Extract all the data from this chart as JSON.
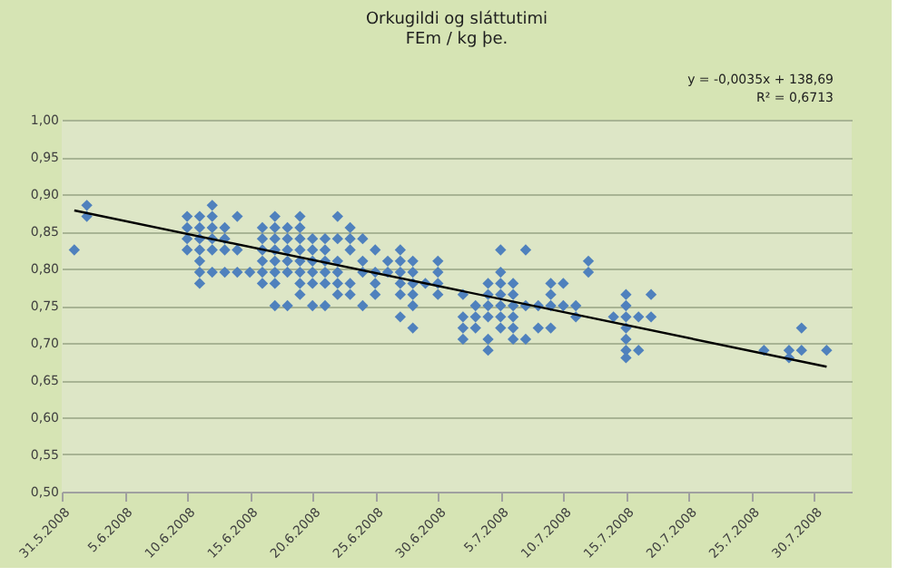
{
  "chart_data": {
    "type": "scatter",
    "title": "Orkugildi og sláttutimi",
    "subtitle": "FEm / kg þe.",
    "annotations": [
      "y = -0,0035x + 138,69",
      "R² = 0,6713"
    ],
    "xlim": [
      "2008-05-31",
      "2008-08-02"
    ],
    "xticks": [
      {
        "value": "2008-05-31",
        "label": "31.5.2008"
      },
      {
        "value": "2008-06-05",
        "label": "5.6.2008"
      },
      {
        "value": "2008-06-10",
        "label": "10.6.2008"
      },
      {
        "value": "2008-06-15",
        "label": "15.6.2008"
      },
      {
        "value": "2008-06-20",
        "label": "20.6.2008"
      },
      {
        "value": "2008-06-25",
        "label": "25.6.2008"
      },
      {
        "value": "2008-06-30",
        "label": "30.6.2008"
      },
      {
        "value": "2008-07-05",
        "label": "5.7.2008"
      },
      {
        "value": "2008-07-10",
        "label": "10.7.2008"
      },
      {
        "value": "2008-07-15",
        "label": "15.7.2008"
      },
      {
        "value": "2008-07-20",
        "label": "20.7.2008"
      },
      {
        "value": "2008-07-25",
        "label": "25.7.2008"
      },
      {
        "value": "2008-07-30",
        "label": "30.7.2008"
      }
    ],
    "ylim": [
      0.5,
      1.0
    ],
    "yticks": [
      {
        "value": 0.5,
        "label": "0,50"
      },
      {
        "value": 0.55,
        "label": "0,55"
      },
      {
        "value": 0.6,
        "label": "0,60"
      },
      {
        "value": 0.65,
        "label": "0,65"
      },
      {
        "value": 0.7,
        "label": "0,70"
      },
      {
        "value": 0.75,
        "label": "0,75"
      },
      {
        "value": 0.8,
        "label": "0,80"
      },
      {
        "value": 0.85,
        "label": "0,85"
      },
      {
        "value": 0.9,
        "label": "0,90"
      },
      {
        "value": 0.95,
        "label": "0,95"
      },
      {
        "value": 1.0,
        "label": "1,00"
      }
    ],
    "grid": "y",
    "marker": "diamond",
    "series": [
      {
        "type": "scatter",
        "color": "#4f81bd",
        "x": [
          "2008-06-01",
          "2008-06-02",
          "2008-06-02",
          "2008-06-10",
          "2008-06-10",
          "2008-06-10",
          "2008-06-10",
          "2008-06-11",
          "2008-06-11",
          "2008-06-11",
          "2008-06-11",
          "2008-06-11",
          "2008-06-11",
          "2008-06-11",
          "2008-06-12",
          "2008-06-12",
          "2008-06-12",
          "2008-06-12",
          "2008-06-12",
          "2008-06-12",
          "2008-06-13",
          "2008-06-13",
          "2008-06-13",
          "2008-06-13",
          "2008-06-14",
          "2008-06-14",
          "2008-06-14",
          "2008-06-15",
          "2008-06-16",
          "2008-06-16",
          "2008-06-16",
          "2008-06-16",
          "2008-06-16",
          "2008-06-16",
          "2008-06-17",
          "2008-06-17",
          "2008-06-17",
          "2008-06-17",
          "2008-06-17",
          "2008-06-17",
          "2008-06-17",
          "2008-06-17",
          "2008-06-18",
          "2008-06-18",
          "2008-06-18",
          "2008-06-18",
          "2008-06-18",
          "2008-06-18",
          "2008-06-19",
          "2008-06-19",
          "2008-06-19",
          "2008-06-19",
          "2008-06-19",
          "2008-06-19",
          "2008-06-19",
          "2008-06-19",
          "2008-06-20",
          "2008-06-20",
          "2008-06-20",
          "2008-06-20",
          "2008-06-20",
          "2008-06-20",
          "2008-06-21",
          "2008-06-21",
          "2008-06-21",
          "2008-06-21",
          "2008-06-21",
          "2008-06-21",
          "2008-06-22",
          "2008-06-22",
          "2008-06-22",
          "2008-06-22",
          "2008-06-22",
          "2008-06-22",
          "2008-06-23",
          "2008-06-23",
          "2008-06-23",
          "2008-06-23",
          "2008-06-23",
          "2008-06-24",
          "2008-06-24",
          "2008-06-24",
          "2008-06-24",
          "2008-06-25",
          "2008-06-25",
          "2008-06-25",
          "2008-06-25",
          "2008-06-26",
          "2008-06-26",
          "2008-06-27",
          "2008-06-27",
          "2008-06-27",
          "2008-06-27",
          "2008-06-27",
          "2008-06-27",
          "2008-06-28",
          "2008-06-28",
          "2008-06-28",
          "2008-06-28",
          "2008-06-28",
          "2008-06-28",
          "2008-06-29",
          "2008-06-30",
          "2008-06-30",
          "2008-06-30",
          "2008-06-30",
          "2008-07-02",
          "2008-07-02",
          "2008-07-02",
          "2008-07-02",
          "2008-07-03",
          "2008-07-03",
          "2008-07-03",
          "2008-07-04",
          "2008-07-04",
          "2008-07-04",
          "2008-07-04",
          "2008-07-04",
          "2008-07-04",
          "2008-07-05",
          "2008-07-05",
          "2008-07-05",
          "2008-07-05",
          "2008-07-05",
          "2008-07-05",
          "2008-07-05",
          "2008-07-06",
          "2008-07-06",
          "2008-07-06",
          "2008-07-06",
          "2008-07-06",
          "2008-07-06",
          "2008-07-07",
          "2008-07-07",
          "2008-07-07",
          "2008-07-08",
          "2008-07-08",
          "2008-07-09",
          "2008-07-09",
          "2008-07-09",
          "2008-07-09",
          "2008-07-10",
          "2008-07-10",
          "2008-07-11",
          "2008-07-11",
          "2008-07-12",
          "2008-07-12",
          "2008-07-14",
          "2008-07-15",
          "2008-07-15",
          "2008-07-15",
          "2008-07-15",
          "2008-07-15",
          "2008-07-15",
          "2008-07-15",
          "2008-07-16",
          "2008-07-16",
          "2008-07-17",
          "2008-07-17",
          "2008-07-26",
          "2008-07-28",
          "2008-07-28",
          "2008-07-29",
          "2008-07-29",
          "2008-07-31"
        ],
        "values": [
          0.825,
          0.885,
          0.87,
          0.87,
          0.855,
          0.84,
          0.825,
          0.87,
          0.855,
          0.84,
          0.825,
          0.81,
          0.795,
          0.78,
          0.885,
          0.87,
          0.855,
          0.84,
          0.825,
          0.795,
          0.855,
          0.84,
          0.825,
          0.795,
          0.87,
          0.825,
          0.795,
          0.795,
          0.855,
          0.84,
          0.825,
          0.81,
          0.795,
          0.78,
          0.87,
          0.855,
          0.84,
          0.825,
          0.81,
          0.795,
          0.78,
          0.75,
          0.855,
          0.84,
          0.825,
          0.81,
          0.795,
          0.75,
          0.87,
          0.855,
          0.84,
          0.825,
          0.81,
          0.795,
          0.78,
          0.765,
          0.84,
          0.825,
          0.81,
          0.795,
          0.78,
          0.75,
          0.84,
          0.825,
          0.81,
          0.795,
          0.78,
          0.75,
          0.87,
          0.84,
          0.81,
          0.795,
          0.78,
          0.765,
          0.855,
          0.84,
          0.825,
          0.78,
          0.765,
          0.84,
          0.81,
          0.795,
          0.75,
          0.825,
          0.795,
          0.78,
          0.765,
          0.81,
          0.795,
          0.825,
          0.81,
          0.795,
          0.78,
          0.765,
          0.735,
          0.81,
          0.795,
          0.78,
          0.765,
          0.75,
          0.72,
          0.78,
          0.81,
          0.795,
          0.78,
          0.765,
          0.765,
          0.735,
          0.72,
          0.705,
          0.75,
          0.735,
          0.72,
          0.78,
          0.765,
          0.75,
          0.735,
          0.705,
          0.69,
          0.825,
          0.795,
          0.78,
          0.765,
          0.75,
          0.735,
          0.72,
          0.78,
          0.765,
          0.75,
          0.735,
          0.72,
          0.705,
          0.825,
          0.75,
          0.705,
          0.75,
          0.72,
          0.78,
          0.765,
          0.75,
          0.72,
          0.78,
          0.75,
          0.75,
          0.735,
          0.81,
          0.795,
          0.735,
          0.765,
          0.75,
          0.735,
          0.72,
          0.705,
          0.69,
          0.68,
          0.735,
          0.69,
          0.765,
          0.735,
          0.69,
          0.69,
          0.68,
          0.72,
          0.69,
          0.69
        ]
      },
      {
        "type": "line",
        "color": "#000000",
        "marker": "none",
        "line_style": "solid",
        "x": [
          "2008-06-01",
          "2008-07-31"
        ],
        "values": [
          0.878,
          0.668
        ]
      }
    ]
  }
}
